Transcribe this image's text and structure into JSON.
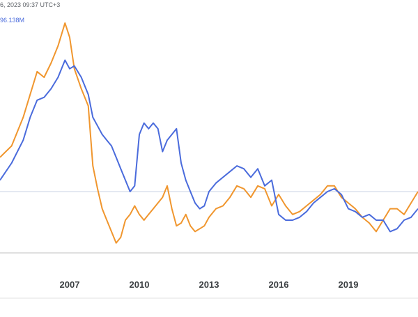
{
  "header": {
    "datetime": "6, 2023 09:37 UTC+3",
    "value_readout": "96.138M"
  },
  "chart_data": {
    "type": "line",
    "title": "",
    "xlabel": "",
    "ylabel": "",
    "xlim": [
      2004.0,
      2022.0
    ],
    "ylim": [
      0,
      100
    ],
    "grid": false,
    "x_ticks": [
      {
        "value": 2007,
        "label": "2007"
      },
      {
        "value": 2010,
        "label": "2010"
      },
      {
        "value": 2013,
        "label": "2013"
      },
      {
        "value": 2016,
        "label": "2016"
      },
      {
        "value": 2019,
        "label": "2019"
      }
    ],
    "reference_line": 50,
    "colors": {
      "blue": "#4a6bdc",
      "orange": "#f0962e",
      "reference": "#c8d3e6",
      "baseline": "#c2c2c2"
    },
    "series": [
      {
        "color": "#f0962e",
        "x": [
          2004.0,
          2004.5,
          2005.0,
          2005.3,
          2005.6,
          2005.9,
          2006.2,
          2006.5,
          2006.8,
          2007.0,
          2007.2,
          2007.5,
          2007.8,
          2008.0,
          2008.2,
          2008.4,
          2008.6,
          2008.8,
          2009.0,
          2009.2,
          2009.4,
          2009.6,
          2009.8,
          2010.0,
          2010.2,
          2010.4,
          2010.6,
          2010.8,
          2011.0,
          2011.2,
          2011.4,
          2011.6,
          2011.8,
          2012.0,
          2012.2,
          2012.4,
          2012.6,
          2012.8,
          2013.0,
          2013.3,
          2013.6,
          2013.9,
          2014.2,
          2014.5,
          2014.8,
          2015.1,
          2015.4,
          2015.7,
          2016.0,
          2016.3,
          2016.6,
          2016.9,
          2017.2,
          2017.5,
          2017.8,
          2018.1,
          2018.4,
          2018.7,
          2019.0,
          2019.3,
          2019.6,
          2019.9,
          2020.2,
          2020.5,
          2020.8,
          2021.1,
          2021.4,
          2021.7,
          2022.0
        ],
        "y": [
          62,
          66,
          76,
          84,
          92,
          90,
          95,
          101,
          109,
          104,
          93,
          86,
          80,
          59,
          51,
          44,
          40,
          36,
          32,
          34,
          40,
          42,
          45,
          42,
          40,
          42,
          44,
          46,
          48,
          52,
          44,
          38,
          39,
          42,
          38,
          36,
          37,
          38,
          41,
          44,
          45,
          48,
          52,
          51,
          48,
          52,
          51,
          45,
          49,
          45,
          42,
          43,
          45,
          47,
          49,
          52,
          52,
          48,
          46,
          44,
          41,
          39,
          36,
          40,
          44,
          44,
          42,
          46,
          50
        ]
      },
      {
        "color": "#4a6bdc",
        "x": [
          2004.0,
          2004.5,
          2005.0,
          2005.3,
          2005.6,
          2005.9,
          2006.2,
          2006.5,
          2006.8,
          2007.0,
          2007.2,
          2007.5,
          2007.8,
          2008.0,
          2008.2,
          2008.4,
          2008.6,
          2008.8,
          2009.0,
          2009.2,
          2009.4,
          2009.6,
          2009.8,
          2010.0,
          2010.2,
          2010.4,
          2010.6,
          2010.8,
          2011.0,
          2011.2,
          2011.4,
          2011.6,
          2011.8,
          2012.0,
          2012.2,
          2012.4,
          2012.6,
          2012.8,
          2013.0,
          2013.3,
          2013.6,
          2013.9,
          2014.2,
          2014.5,
          2014.8,
          2015.1,
          2015.4,
          2015.7,
          2016.0,
          2016.3,
          2016.6,
          2016.9,
          2017.2,
          2017.5,
          2017.8,
          2018.1,
          2018.4,
          2018.7,
          2019.0,
          2019.3,
          2019.6,
          2019.9,
          2020.2,
          2020.5,
          2020.8,
          2021.1,
          2021.4,
          2021.7,
          2022.0
        ],
        "y": [
          54,
          60,
          68,
          76,
          82,
          83,
          86,
          90,
          96,
          93,
          94,
          90,
          84,
          76,
          73,
          70,
          68,
          66,
          62,
          58,
          54,
          50,
          52,
          70,
          74,
          72,
          74,
          72,
          64,
          68,
          70,
          72,
          60,
          54,
          50,
          46,
          44,
          45,
          50,
          53,
          55,
          57,
          59,
          58,
          55,
          58,
          52,
          54,
          42,
          40,
          40,
          41,
          43,
          46,
          48,
          50,
          51,
          49,
          44,
          43,
          41,
          42,
          40,
          40,
          36,
          37,
          40,
          41,
          44
        ]
      }
    ]
  }
}
